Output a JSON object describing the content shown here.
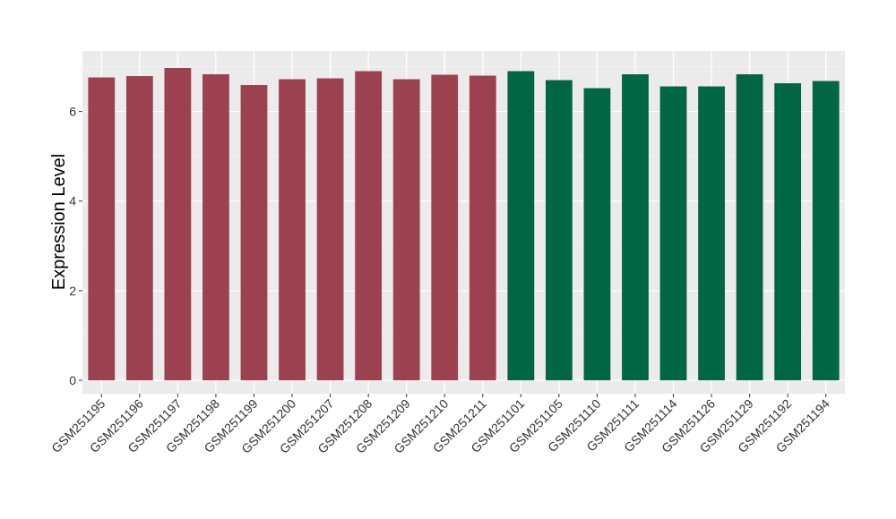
{
  "chart_data": {
    "type": "bar",
    "title": "",
    "xlabel": "",
    "ylabel": "Expression Level",
    "ylim": [
      -0.3,
      7.35
    ],
    "yticks": [
      0,
      2,
      4,
      6
    ],
    "grid": true,
    "legend": "none",
    "categories": [
      "GSM251195",
      "GSM251196",
      "GSM251197",
      "GSM251198",
      "GSM251199",
      "GSM251200",
      "GSM251207",
      "GSM251208",
      "GSM251209",
      "GSM251210",
      "GSM251211",
      "GSM251101",
      "GSM251105",
      "GSM251110",
      "GSM251111",
      "GSM251114",
      "GSM251126",
      "GSM251129",
      "GSM251192",
      "GSM251194"
    ],
    "values": [
      6.76,
      6.79,
      6.97,
      6.83,
      6.59,
      6.72,
      6.74,
      6.9,
      6.72,
      6.82,
      6.8,
      6.9,
      6.7,
      6.52,
      6.83,
      6.56,
      6.56,
      6.83,
      6.63,
      6.68
    ],
    "bar_colors": [
      "#9b4150",
      "#9b4150",
      "#9b4150",
      "#9b4150",
      "#9b4150",
      "#9b4150",
      "#9b4150",
      "#9b4150",
      "#9b4150",
      "#9b4150",
      "#9b4150",
      "#006644",
      "#006644",
      "#006644",
      "#006644",
      "#006644",
      "#006644",
      "#006644",
      "#006644",
      "#006644"
    ]
  },
  "colors": {
    "panel_background": "#ebebeb",
    "grid_major": "#ffffff",
    "grid_minor": "#f4f4f4",
    "group_a": "#9b4150",
    "group_b": "#006644"
  }
}
